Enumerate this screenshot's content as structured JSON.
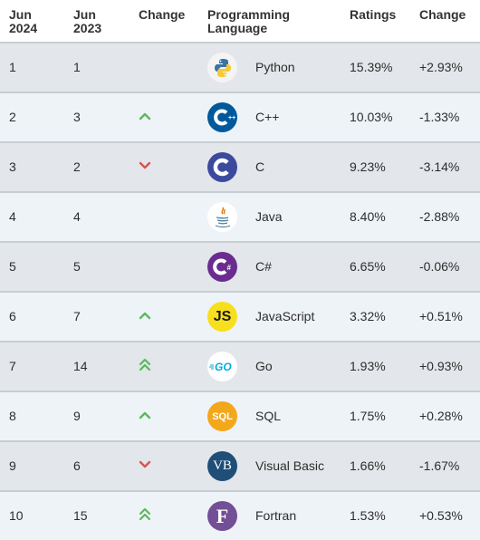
{
  "header": {
    "current": "Jun\n2024",
    "previous": "Jun\n2023",
    "change": "Change",
    "language": "Programming\nLanguage",
    "ratings": "Ratings",
    "ratings_change": "Change"
  },
  "colors": {
    "up": "#5cb85c",
    "down": "#d9534f",
    "row_odd": "#e3e6ea",
    "row_even": "#eef3f8"
  },
  "rows": [
    {
      "current": "1",
      "previous": "1",
      "trend": "none",
      "language": "Python",
      "rating": "15.39%",
      "change": "+2.93%",
      "icon": "python-icon"
    },
    {
      "current": "2",
      "previous": "3",
      "trend": "up",
      "language": "C++",
      "rating": "10.03%",
      "change": "-1.33%",
      "icon": "cpp-icon"
    },
    {
      "current": "3",
      "previous": "2",
      "trend": "down",
      "language": "C",
      "rating": "9.23%",
      "change": "-3.14%",
      "icon": "c-icon"
    },
    {
      "current": "4",
      "previous": "4",
      "trend": "none",
      "language": "Java",
      "rating": "8.40%",
      "change": "-2.88%",
      "icon": "java-icon"
    },
    {
      "current": "5",
      "previous": "5",
      "trend": "none",
      "language": "C#",
      "rating": "6.65%",
      "change": "-0.06%",
      "icon": "csharp-icon"
    },
    {
      "current": "6",
      "previous": "7",
      "trend": "up",
      "language": "JavaScript",
      "rating": "3.32%",
      "change": "+0.51%",
      "icon": "javascript-icon"
    },
    {
      "current": "7",
      "previous": "14",
      "trend": "double-up",
      "language": "Go",
      "rating": "1.93%",
      "change": "+0.93%",
      "icon": "go-icon"
    },
    {
      "current": "8",
      "previous": "9",
      "trend": "up",
      "language": "SQL",
      "rating": "1.75%",
      "change": "+0.28%",
      "icon": "sql-icon"
    },
    {
      "current": "9",
      "previous": "6",
      "trend": "down",
      "language": "Visual Basic",
      "rating": "1.66%",
      "change": "-1.67%",
      "icon": "visual-basic-icon"
    },
    {
      "current": "10",
      "previous": "15",
      "trend": "double-up",
      "language": "Fortran",
      "rating": "1.53%",
      "change": "+0.53%",
      "icon": "fortran-icon"
    }
  ],
  "logo_text": {
    "javascript": "JS",
    "go": "GO",
    "sql": "SQL",
    "visual_basic": "VB",
    "fortran": "F",
    "csharp": "#",
    "cpp": "++"
  }
}
